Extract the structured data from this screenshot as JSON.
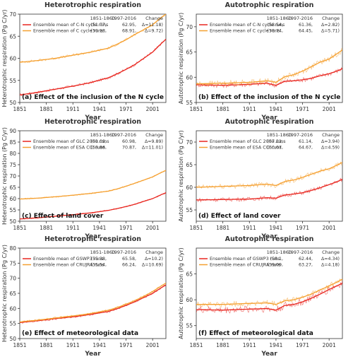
{
  "colors": {
    "red": "#e8261f",
    "orange": "#f5a030",
    "axis": "#333333"
  },
  "column_titles": [
    "Heterotrophic respiration",
    "Autotrophic respiration"
  ],
  "xlabel": "Year",
  "ylabel_left": "Heterotrophic respiration  (Pg C/yr)",
  "ylabel_right": "Autotrophic respiration  (Pg C/yr)",
  "legend_header": {
    "p1": "1851-1860",
    "p2": "1997-2016",
    "chg": "Change"
  },
  "chart_data": [
    {
      "type": "line",
      "panel": "a",
      "title": "Heterotrophic respiration",
      "caption": "(a) Effect of the inclusion of the N cycle",
      "xlabel": "Year",
      "ylabel": "Heterotrophic respiration  (Pg C/yr)",
      "xlim": [
        1851,
        2016
      ],
      "ylim": [
        50,
        70
      ],
      "xticks": [
        1851,
        1881,
        1911,
        1941,
        1971,
        2001
      ],
      "yticks": [
        50,
        55,
        60,
        65,
        70
      ],
      "series": [
        {
          "name": "Ensemble mean of C-N cycle runs",
          "color": "red",
          "p1": "(51.77,",
          "p2": "62.95,",
          "chg": "Δ=11.18)",
          "x": [
            1851,
            1871,
            1891,
            1911,
            1931,
            1951,
            1961,
            1971,
            1981,
            1991,
            2001,
            2011,
            2016
          ],
          "y": [
            51.7,
            52.3,
            53.0,
            53.7,
            54.5,
            55.6,
            56.5,
            57.5,
            58.6,
            60.0,
            61.4,
            63.4,
            64.3
          ],
          "noise": 0.3
        },
        {
          "name": "Ensemble mean of C cycle runs",
          "color": "orange",
          "p1": "(59.18,",
          "p2": "68.91,",
          "chg": "Δ=9.72)",
          "x": [
            1851,
            1871,
            1891,
            1911,
            1931,
            1951,
            1961,
            1971,
            1981,
            1991,
            2001,
            2011,
            2016
          ],
          "y": [
            59.1,
            59.5,
            60.0,
            60.7,
            61.4,
            62.3,
            63.2,
            64.2,
            65.4,
            66.5,
            67.6,
            69.3,
            70.0
          ],
          "noise": 0.3
        }
      ]
    },
    {
      "type": "line",
      "panel": "b",
      "title": "Autotrophic respiration",
      "caption": "(b) Effect of the inclusion of the N cycle",
      "xlabel": "Year",
      "ylabel": "Autotrophic respiration  (Pg C/yr)",
      "xlim": [
        1851,
        2016
      ],
      "ylim": [
        55,
        72.5
      ],
      "xticks": [
        1851,
        1881,
        1911,
        1941,
        1971,
        2001
      ],
      "yticks": [
        55,
        60,
        65,
        70
      ],
      "series": [
        {
          "name": "Ensemble mean of C-N cycle runs",
          "color": "red",
          "p1": "(58.54,",
          "p2": "61.36,",
          "chg": "Δ=2.82)",
          "x": [
            1851,
            1881,
            1911,
            1931,
            1941,
            1951,
            1961,
            1971,
            1981,
            1991,
            2001,
            2011,
            2016
          ],
          "y": [
            58.5,
            58.4,
            58.6,
            58.8,
            58.4,
            59.2,
            59.3,
            59.5,
            59.8,
            60.3,
            60.7,
            61.3,
            61.7
          ],
          "noise": 0.45
        },
        {
          "name": "Ensemble mean of C cycle runs",
          "color": "orange",
          "p1": "(58.74,",
          "p2": "64.45,",
          "chg": "Δ=5.71)",
          "x": [
            1851,
            1881,
            1911,
            1931,
            1941,
            1951,
            1961,
            1971,
            1981,
            1991,
            2001,
            2011,
            2016
          ],
          "y": [
            58.7,
            58.8,
            59.0,
            59.3,
            59.0,
            60.1,
            60.5,
            61.2,
            62.1,
            63.0,
            63.6,
            64.8,
            65.4
          ],
          "noise": 0.55
        }
      ]
    },
    {
      "type": "line",
      "panel": "c",
      "title": "Heterotrophic respiration",
      "caption": "(c) Effect of land cover",
      "xlabel": "Year",
      "ylabel": "Heterotrophic respiration  (Pg C/yr)",
      "xlim": [
        1851,
        2016
      ],
      "ylim": [
        50,
        90
      ],
      "xticks": [
        1851,
        1881,
        1911,
        1941,
        1971,
        2001
      ],
      "yticks": [
        50,
        55,
        60,
        65,
        70,
        75,
        80,
        85,
        90
      ],
      "series": [
        {
          "name": "Ensemble mean of GLC 2000 runs",
          "color": "red",
          "p1": "(51.09,",
          "p2": "60.98,",
          "chg": "Δ=9.89)",
          "x": [
            1851,
            1871,
            1891,
            1911,
            1931,
            1951,
            1961,
            1971,
            1981,
            1991,
            2001,
            2011,
            2016
          ],
          "y": [
            51.0,
            51.5,
            52.2,
            52.9,
            53.7,
            54.8,
            55.6,
            56.5,
            57.5,
            58.8,
            60.0,
            61.8,
            62.5
          ],
          "noise": 0.3
        },
        {
          "name": "Ensemble mean of ESA CCI runs",
          "color": "orange",
          "p1": "(59.86,",
          "p2": "70.87,",
          "chg": "Δ=11.01)",
          "x": [
            1851,
            1871,
            1891,
            1911,
            1931,
            1951,
            1961,
            1971,
            1981,
            1991,
            2001,
            2011,
            2016
          ],
          "y": [
            59.8,
            60.2,
            60.8,
            61.5,
            62.3,
            63.3,
            64.3,
            65.5,
            66.8,
            68.2,
            69.6,
            71.6,
            72.4
          ],
          "noise": 0.3
        }
      ]
    },
    {
      "type": "line",
      "panel": "d",
      "title": "Autotrophic respiration",
      "caption": "(d) Effect of land cover",
      "xlabel": "Year",
      "ylabel": "Autotrophic respiration  (Pg C/yr)",
      "xlim": [
        1851,
        2016
      ],
      "ylim": [
        52.5,
        72.5
      ],
      "xticks": [
        1851,
        1881,
        1911,
        1941,
        1971,
        2001
      ],
      "yticks": [
        55,
        60,
        65,
        70
      ],
      "series": [
        {
          "name": "Ensemble mean of GLC 2000 runs",
          "color": "red",
          "p1": "(57.21,",
          "p2": "61.14,",
          "chg": "Δ=3.94)",
          "x": [
            1851,
            1881,
            1911,
            1931,
            1941,
            1951,
            1961,
            1971,
            1981,
            1991,
            2001,
            2011,
            2016
          ],
          "y": [
            57.2,
            57.3,
            57.4,
            57.7,
            57.6,
            58.3,
            58.5,
            58.8,
            59.3,
            59.9,
            60.6,
            61.3,
            61.8
          ],
          "noise": 0.45
        },
        {
          "name": "Ensemble mean of ESA CCI runs",
          "color": "orange",
          "p1": "(60.07,",
          "p2": "64.67,",
          "chg": "Δ=4.59)",
          "x": [
            1851,
            1881,
            1911,
            1931,
            1941,
            1951,
            1961,
            1971,
            1981,
            1991,
            2001,
            2011,
            2016
          ],
          "y": [
            60.0,
            60.2,
            60.4,
            60.7,
            60.4,
            61.3,
            61.6,
            62.2,
            62.9,
            63.6,
            64.1,
            65.0,
            65.5
          ],
          "noise": 0.55
        }
      ]
    },
    {
      "type": "line",
      "panel": "e",
      "title": "Heterotrophic respiration",
      "caption": "(e) Effect of meteorological data",
      "xlabel": "Year",
      "ylabel": "Heterotrophic respiration  (Pg C/yr)",
      "xlim": [
        1851,
        2016
      ],
      "ylim": [
        50,
        80
      ],
      "xticks": [
        1851,
        1881,
        1911,
        1941,
        1971,
        2001
      ],
      "yticks": [
        50,
        55,
        60,
        65,
        70,
        75,
        80
      ],
      "series": [
        {
          "name": "Ensemble mean of GSWP3 runs",
          "color": "red",
          "p1": "(55.38,",
          "p2": "65.58,",
          "chg": "Δ=10.2)",
          "x": [
            1851,
            1871,
            1891,
            1911,
            1931,
            1951,
            1961,
            1971,
            1981,
            1991,
            2001,
            2011,
            2016
          ],
          "y": [
            55.3,
            55.9,
            56.6,
            57.2,
            58.0,
            59.0,
            59.9,
            61.0,
            62.2,
            63.6,
            65.0,
            66.9,
            67.8
          ],
          "noise": 0.4
        },
        {
          "name": "Ensemble mean of CRUJRA runs",
          "color": "orange",
          "p1": "(55.54,",
          "p2": "66.24,",
          "chg": "Δ=10.69)",
          "x": [
            1851,
            1871,
            1891,
            1911,
            1931,
            1951,
            1961,
            1971,
            1981,
            1991,
            2001,
            2011,
            2016
          ],
          "y": [
            55.5,
            56.1,
            56.8,
            57.5,
            58.3,
            59.4,
            60.3,
            61.4,
            62.6,
            64.0,
            65.6,
            67.5,
            68.4
          ],
          "noise": 0.35
        }
      ]
    },
    {
      "type": "line",
      "panel": "f",
      "title": "Autotrophic respiration",
      "caption": "(f) Effect of meteorological data",
      "xlabel": "Year",
      "ylabel": "Autotrophic respiration  (Pg C/yr)",
      "xlim": [
        1851,
        2016
      ],
      "ylim": [
        52.5,
        70
      ],
      "xticks": [
        1851,
        1881,
        1911,
        1941,
        1971,
        2001
      ],
      "yticks": [
        55,
        60,
        65
      ],
      "series": [
        {
          "name": "Ensemble mean of GSWP3 runs",
          "color": "red",
          "p1": "(58.1,",
          "p2": "62.44,",
          "chg": "Δ=4.34)",
          "x": [
            1851,
            1881,
            1911,
            1931,
            1941,
            1951,
            1961,
            1971,
            1981,
            1991,
            2001,
            2011,
            2016
          ],
          "y": [
            58.1,
            58.0,
            58.2,
            58.3,
            58.0,
            58.9,
            59.1,
            59.6,
            60.3,
            61.1,
            62.0,
            62.8,
            63.2
          ],
          "noise": 0.7
        },
        {
          "name": "Ensemble mean of CRUJRA runs",
          "color": "orange",
          "p1": "(59.09,",
          "p2": "63.27,",
          "chg": "Δ=4.18)",
          "x": [
            1851,
            1881,
            1911,
            1931,
            1941,
            1951,
            1961,
            1971,
            1981,
            1991,
            2001,
            2011,
            2016
          ],
          "y": [
            59.1,
            59.1,
            59.3,
            59.4,
            59.1,
            59.8,
            60.0,
            60.5,
            61.1,
            61.9,
            62.7,
            63.5,
            64.0
          ],
          "noise": 0.55
        }
      ]
    }
  ]
}
